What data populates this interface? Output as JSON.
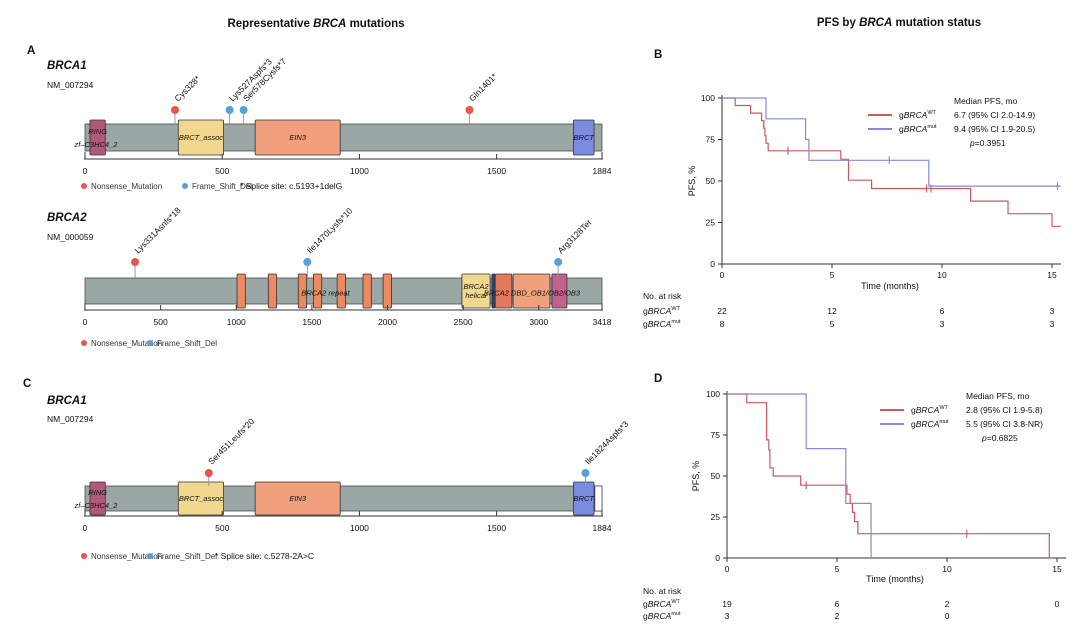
{
  "titles": {
    "left": {
      "pre": "Representative ",
      "italic": "BRCA",
      "post": " mutations"
    },
    "right": {
      "pre": "PFS by ",
      "italic": "BRCA",
      "post": " mutation status"
    }
  },
  "panels": {
    "a_label": "A",
    "b_label": "B",
    "c_label": "C",
    "d_label": "D"
  },
  "colors": {
    "nonsense": "#e4564f",
    "frameshift": "#58a0d8",
    "km_wt": "#cb5a60",
    "km_mut": "#8789dd",
    "bar_gray": "#9aa7a4",
    "domain_ring_pink": "#b25878",
    "domain_yellow": "#f2d88e",
    "domain_salmon": "#f0a07c",
    "domain_blue": "#7b8ce0",
    "repeat_orange": "#ee8a62",
    "domain_navy": "#2e4372",
    "domain_orangered": "#e37a5b",
    "domain_ob_pink": "#c2618e"
  },
  "chart_data": [
    {
      "type": "lollipop",
      "panel": "A",
      "gene": "BRCA1",
      "transcript": "NM_007294",
      "axis_max": 1884,
      "axis_ticks": [
        0,
        500,
        1000,
        1500,
        1884
      ],
      "mutations": [
        {
          "label": "Cys328*",
          "pos": 328,
          "mut_type": "Nonsense_Mutation",
          "color": "#e4564f"
        },
        {
          "label": "Lys527Aspfs*3",
          "pos": 527,
          "mut_type": "Frame_Shift_Del",
          "color": "#58a0d8"
        },
        {
          "label": "Ser578Cysfs*7",
          "pos": 578,
          "mut_type": "Frame_Shift_Del",
          "color": "#58a0d8"
        },
        {
          "label": "Gln1401*",
          "pos": 1401,
          "mut_type": "Nonsense_Mutation",
          "color": "#e4564f"
        }
      ],
      "domains": [
        {
          "label": "RING",
          "start": 18,
          "end": 74,
          "color": "#b25878",
          "label_dy": -6
        },
        {
          "label": "BRCT_assoc",
          "start": 340,
          "end": 505,
          "color": "#f2d88e"
        },
        {
          "label": "EIN3",
          "start": 620,
          "end": 930,
          "color": "#f0a07c"
        },
        {
          "label": "BRCT",
          "start": 1780,
          "end": 1855,
          "color": "#7b8ce0"
        }
      ],
      "extra_labels": [
        {
          "text": "zf–C3HC4_2",
          "pos": 40,
          "dy": 7
        }
      ],
      "legend": [
        {
          "label": "Nonsense_Mutation",
          "color": "#e4564f"
        },
        {
          "label": "Frame_Shift_Del",
          "color": "#58a0d8"
        }
      ],
      "note": "* Splice site: c.5193+1delG"
    },
    {
      "type": "lollipop",
      "panel": "A",
      "gene": "BRCA2",
      "transcript": "NM_000059",
      "axis_max": 3418,
      "axis_ticks": [
        0,
        500,
        1000,
        1500,
        2000,
        2500,
        3000,
        3418
      ],
      "mutations": [
        {
          "label": "Lys331Asnfs*18",
          "pos": 331,
          "mut_type": "Nonsense_Mutation",
          "color": "#e4564f"
        },
        {
          "label": "Ile1470Lysfs*10",
          "pos": 1470,
          "mut_type": "Frame_Shift_Del",
          "color": "#58a0d8"
        },
        {
          "label": "Arg3128Ter",
          "pos": 3128,
          "mut_type": "Frame_Shift_Del",
          "color": "#58a0d8"
        }
      ],
      "domains": [
        {
          "start": 1005,
          "end": 1060,
          "color": "#ee8a62"
        },
        {
          "start": 1212,
          "end": 1267,
          "color": "#ee8a62"
        },
        {
          "start": 1410,
          "end": 1465,
          "color": "#ee8a62"
        },
        {
          "start": 1510,
          "end": 1565,
          "color": "#ee8a62"
        },
        {
          "start": 1667,
          "end": 1722,
          "color": "#ee8a62"
        },
        {
          "start": 1838,
          "end": 1893,
          "color": "#ee8a62"
        },
        {
          "start": 1971,
          "end": 2026,
          "color": "#ee8a62"
        },
        {
          "label": "BRCA2\nhelical",
          "start": 2492,
          "end": 2678,
          "color": "#f2d88e"
        },
        {
          "start": 2690,
          "end": 2712,
          "color": "#2e4372"
        },
        {
          "start": 2712,
          "end": 2822,
          "color": "#e37a5b"
        },
        {
          "start": 2830,
          "end": 3074,
          "color": "#f0a07c"
        },
        {
          "start": 3087,
          "end": 3186,
          "color": "#c2618e"
        }
      ],
      "extra_labels": [
        {
          "text": "BRCA2 repeat",
          "pos": 1590,
          "dy": 2
        },
        {
          "text": "BRCA2 DBD_OB1/OB2/OB3",
          "pos": 2955,
          "dy": 2
        }
      ],
      "legend": [
        {
          "label": "Nonsense_Mutation",
          "color": "#e4564f"
        },
        {
          "label": "Frame_Shift_Del",
          "color": "#58a0d8"
        }
      ],
      "note": ""
    },
    {
      "type": "km",
      "panel": "B",
      "ylabel": "PFS, %",
      "xlabel": "Time (months)",
      "yticks": [
        0,
        25,
        50,
        75,
        100
      ],
      "xticks": [
        0,
        5,
        10,
        15
      ],
      "legend_title": "Median PFS, mo",
      "p_italic": "p",
      "p_rest": "=0.3951",
      "at_risk_label": "No. at risk",
      "groups": [
        {
          "name_base": "g",
          "name_gene": "BRCA",
          "name_sup": "WT",
          "color": "#cb5a60",
          "median_text": "6.7 (95% CI 2.0-14.9)",
          "at_risk": [
            22,
            12,
            6,
            3
          ],
          "steps": [
            [
              0,
              100
            ],
            [
              0.6,
              95.5
            ],
            [
              1.3,
              90.9
            ],
            [
              1.8,
              86.4
            ],
            [
              1.9,
              81.8
            ],
            [
              1.95,
              77.3
            ],
            [
              2.0,
              72.7
            ],
            [
              2.1,
              68.2
            ],
            [
              5.4,
              63.1
            ],
            [
              5.75,
              50.5
            ],
            [
              6.8,
              45.5
            ],
            [
              11.3,
              37.9
            ],
            [
              13.0,
              30.3
            ],
            [
              15.0,
              22.7
            ]
          ],
          "end_t": 15.4,
          "censors": [
            [
              1.9,
              84
            ],
            [
              3.0,
              68.2
            ],
            [
              9.3,
              45.5
            ],
            [
              9.5,
              45.5
            ]
          ]
        },
        {
          "name_base": "g",
          "name_gene": "BRCA",
          "name_sup": "mut",
          "color": "#8789dd",
          "median_text": "9.4 (95% CI 1.9-20.5)",
          "at_risk": [
            8,
            5,
            3,
            3
          ],
          "steps": [
            [
              0,
              100
            ],
            [
              2.0,
              87.5
            ],
            [
              3.8,
              75
            ],
            [
              3.95,
              62.5
            ],
            [
              9.4,
              46.9
            ]
          ],
          "end_t": 15.4,
          "censors": [
            [
              7.6,
              62.5
            ],
            [
              15.25,
              46.9
            ]
          ]
        }
      ]
    },
    {
      "type": "lollipop",
      "panel": "C",
      "gene": "BRCA1",
      "transcript": "NM_007294",
      "axis_max": 1884,
      "axis_ticks": [
        0,
        500,
        1000,
        1500,
        1884
      ],
      "white_tail_start": 1858,
      "mutations": [
        {
          "label": "Ser451Leufs*20",
          "pos": 451,
          "mut_type": "Nonsense_Mutation",
          "color": "#e4564f"
        },
        {
          "label": "Ile1824Aspfs*3",
          "pos": 1824,
          "mut_type": "Frame_Shift_Del",
          "color": "#58a0d8"
        }
      ],
      "domains": [
        {
          "label": "RING",
          "start": 18,
          "end": 74,
          "color": "#b25878",
          "label_dy": -6
        },
        {
          "label": "BRCT_assoc",
          "start": 340,
          "end": 505,
          "color": "#f2d88e"
        },
        {
          "label": "EIN3",
          "start": 620,
          "end": 930,
          "color": "#f0a07c"
        },
        {
          "label": "BRCT",
          "start": 1780,
          "end": 1855,
          "color": "#7b8ce0"
        }
      ],
      "extra_labels": [
        {
          "text": "zf–C3HC4_2",
          "pos": 40,
          "dy": 7
        }
      ],
      "legend": [
        {
          "label": "Nonsense_Mutation",
          "color": "#e4564f"
        },
        {
          "label": "Frame_Shift_Del",
          "color": "#58a0d8"
        }
      ],
      "note": "* Splice site: c.5278-2A>C"
    },
    {
      "type": "km",
      "panel": "D",
      "ylabel": "PFS, %",
      "xlabel": "Time (months)",
      "yticks": [
        0,
        25,
        50,
        75,
        100
      ],
      "xticks": [
        0,
        5,
        10,
        15
      ],
      "legend_title": "Median PFS, mo",
      "p_italic": "p",
      "p_rest": "=0.6825",
      "at_risk_label": "No. at risk",
      "groups": [
        {
          "name_base": "g",
          "name_gene": "BRCA",
          "name_sup": "WT",
          "color": "#cb5a60",
          "median_text": "2.8 (95% CI 1.9-5.8)",
          "at_risk": [
            19,
            6,
            2,
            0
          ],
          "steps": [
            [
              0,
              100
            ],
            [
              0.9,
              94.7
            ],
            [
              1.8,
              72
            ],
            [
              1.9,
              66
            ],
            [
              1.95,
              55
            ],
            [
              2.1,
              50
            ],
            [
              3.35,
              44.4
            ],
            [
              5.45,
              38.9
            ],
            [
              5.6,
              33.3
            ],
            [
              5.7,
              27.8
            ],
            [
              5.8,
              22.2
            ],
            [
              5.95,
              14.8
            ],
            [
              14.65,
              0
            ]
          ],
          "end_t": 14.75,
          "censors": [
            [
              3.6,
              44.4
            ],
            [
              10.9,
              14.8
            ]
          ]
        },
        {
          "name_base": "g",
          "name_gene": "BRCA",
          "name_sup": "mut",
          "color": "#8789dd",
          "median_text": "5.5 (95% CI 3.8-NR)",
          "at_risk": [
            3,
            2,
            0,
            null
          ],
          "steps": [
            [
              0,
              100
            ],
            [
              3.6,
              66.7
            ],
            [
              5.4,
              33.3
            ],
            [
              6.55,
              0
            ]
          ],
          "end_t": 6.55,
          "censors": []
        }
      ]
    }
  ]
}
